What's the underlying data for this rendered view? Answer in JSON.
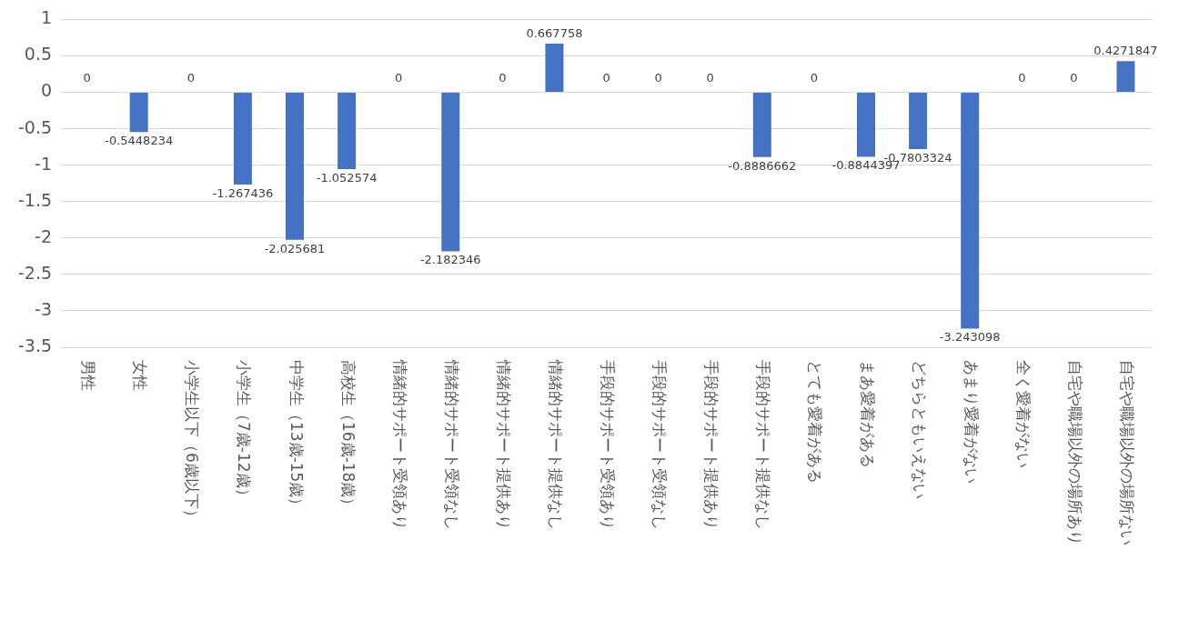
{
  "chart_data": {
    "type": "bar",
    "categories": [
      "男性",
      "女性",
      "小学生以下（6歳以下）",
      "小学生（7歳-12歳）",
      "中学生（13歳-15歳）",
      "高校生（16歳-18歳）",
      "情緒的サポート受領あり",
      "情緒的サポート受領なし",
      "情緒的サポート提供あり",
      "情緒的サポート提供なし",
      "手段的サポート受領あり",
      "手段的サポート受領なし",
      "手段的サポート提供あり",
      "手段的サポート提供なし",
      "とても愛着がある",
      "まあ愛着がある",
      "どちらともいえない",
      "あまり愛着がない",
      "全く愛着がない",
      "自宅や職場以外の場所あり",
      "自宅や職場以外の場所ない"
    ],
    "values": [
      0,
      -0.5448234,
      0,
      -1.267436,
      -2.025681,
      -1.052574,
      0,
      -2.182346,
      0,
      0.667758,
      0,
      0,
      0,
      -0.8886662,
      0,
      -0.8844397,
      -0.7803324,
      -3.243098,
      0,
      0,
      0.4271847
    ],
    "color": "#4472c4",
    "ylim": [
      -3.5,
      1
    ],
    "yticks": [
      -3.5,
      -3,
      -2.5,
      -2,
      -1.5,
      -1,
      -0.5,
      0,
      0.5,
      1
    ],
    "grid": "y",
    "data_labels": true,
    "legend": false
  }
}
